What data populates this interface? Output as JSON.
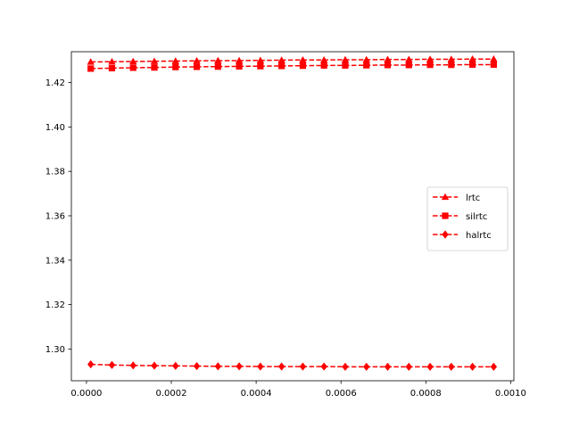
{
  "chart_data": {
    "type": "line",
    "title": "",
    "xlabel": "",
    "ylabel": "",
    "xlim": [
      -3.56e-05,
      0.0010076
    ],
    "ylim": [
      1.2857,
      1.4339
    ],
    "grid": false,
    "legend_placement": "center-right",
    "x": [
      1e-05,
      6e-05,
      0.00011,
      0.00016,
      0.00021,
      0.00026,
      0.00031,
      0.00036,
      0.00041,
      0.00046,
      0.00051,
      0.00056,
      0.00061,
      0.00066,
      0.00071,
      0.00076,
      0.00081,
      0.00086,
      0.00091,
      0.00096
    ],
    "x_ticks": [
      {
        "value": 0.0,
        "label": "0.0000"
      },
      {
        "value": 0.0002,
        "label": "0.0002"
      },
      {
        "value": 0.0004,
        "label": "0.0004"
      },
      {
        "value": 0.0006,
        "label": "0.0006"
      },
      {
        "value": 0.0008,
        "label": "0.0008"
      },
      {
        "value": 0.001,
        "label": "0.0010"
      }
    ],
    "y_ticks": [
      {
        "value": 1.3,
        "label": "1.30"
      },
      {
        "value": 1.32,
        "label": "1.32"
      },
      {
        "value": 1.34,
        "label": "1.34"
      },
      {
        "value": 1.36,
        "label": "1.36"
      },
      {
        "value": 1.38,
        "label": "1.38"
      },
      {
        "value": 1.4,
        "label": "1.40"
      },
      {
        "value": 1.42,
        "label": "1.42"
      }
    ],
    "series": [
      {
        "name": "lrtc",
        "marker": "triangle",
        "color": "#ff0000",
        "line_style": "dashed",
        "values": [
          1.4293,
          1.4294,
          1.4295,
          1.4296,
          1.4297,
          1.4298,
          1.4299,
          1.4299,
          1.43,
          1.4301,
          1.4302,
          1.4302,
          1.4303,
          1.4303,
          1.4304,
          1.4304,
          1.4305,
          1.4305,
          1.4306,
          1.4306
        ]
      },
      {
        "name": "silrtc",
        "marker": "square",
        "color": "#ff0000",
        "line_style": "dashed",
        "values": [
          1.4263,
          1.4265,
          1.4267,
          1.4268,
          1.427,
          1.4271,
          1.4272,
          1.4273,
          1.4274,
          1.4275,
          1.4276,
          1.4277,
          1.4277,
          1.4278,
          1.4279,
          1.4279,
          1.428,
          1.428,
          1.4281,
          1.4281
        ]
      },
      {
        "name": "halrtc",
        "marker": "diamond",
        "color": "#ff0000",
        "line_style": "dashed",
        "values": [
          1.2931,
          1.2928,
          1.2926,
          1.2925,
          1.2924,
          1.2923,
          1.2922,
          1.2922,
          1.2921,
          1.2921,
          1.2921,
          1.2921,
          1.292,
          1.292,
          1.292,
          1.292,
          1.292,
          1.292,
          1.292,
          1.292
        ]
      }
    ]
  }
}
